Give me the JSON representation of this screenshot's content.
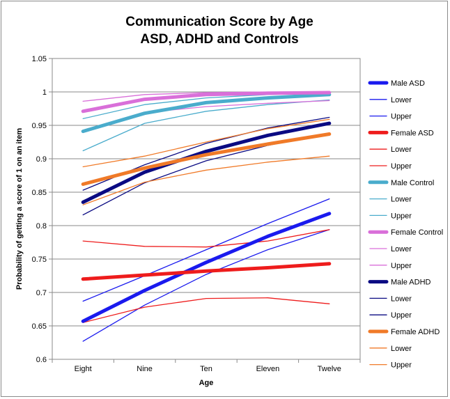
{
  "chart_data": {
    "type": "line",
    "title": [
      "Communication Score by Age",
      "ASD, ADHD and Controls"
    ],
    "xlabel": "Age",
    "ylabel": "Probability of getting a score of 1 on an item",
    "categories": [
      "Eight",
      "Nine",
      "Ten",
      "Eleven",
      "Twelve"
    ],
    "ylim": [
      0.6,
      1.05
    ],
    "yticks": [
      "0.6",
      "0.65",
      "0.7",
      "0.75",
      "0.8",
      "0.85",
      "0.9",
      "0.95",
      "1",
      "1.05"
    ],
    "grid": true,
    "legend_position": "right",
    "series": [
      {
        "name": "Male ASD",
        "color": "#1a1aee",
        "weight": "thick",
        "values": [
          0.657,
          0.703,
          0.745,
          0.784,
          0.818
        ]
      },
      {
        "name": "Lower",
        "color": "#1a1aee",
        "weight": "thin",
        "values": [
          0.627,
          0.681,
          0.727,
          0.764,
          0.794
        ]
      },
      {
        "name": "Upper",
        "color": "#1a1aee",
        "weight": "thin",
        "values": [
          0.687,
          0.725,
          0.764,
          0.803,
          0.84
        ]
      },
      {
        "name": "Female ASD",
        "color": "#ee1c1c",
        "weight": "thick",
        "values": [
          0.72,
          0.726,
          0.732,
          0.737,
          0.743
        ]
      },
      {
        "name": "Lower",
        "color": "#ee1c1c",
        "weight": "thin",
        "values": [
          0.655,
          0.678,
          0.691,
          0.692,
          0.683
        ]
      },
      {
        "name": "Upper",
        "color": "#ee1c1c",
        "weight": "thin",
        "values": [
          0.777,
          0.769,
          0.768,
          0.777,
          0.794
        ]
      },
      {
        "name": "Male Control",
        "color": "#4aaccc",
        "weight": "thick",
        "values": [
          0.941,
          0.968,
          0.984,
          0.991,
          0.996
        ]
      },
      {
        "name": "Lower",
        "color": "#4aaccc",
        "weight": "thin",
        "values": [
          0.912,
          0.953,
          0.971,
          0.981,
          0.988
        ]
      },
      {
        "name": "Upper",
        "color": "#4aaccc",
        "weight": "thin",
        "values": [
          0.96,
          0.981,
          0.991,
          0.996,
          0.999
        ]
      },
      {
        "name": "Female Control",
        "color": "#d96fd9",
        "weight": "thick",
        "values": [
          0.971,
          0.989,
          0.996,
          0.998,
          0.999
        ]
      },
      {
        "name": "Lower",
        "color": "#d96fd9",
        "weight": "thin",
        "values": [
          0.941,
          0.969,
          0.978,
          0.983,
          0.987
        ]
      },
      {
        "name": "Upper",
        "color": "#d96fd9",
        "weight": "thin",
        "values": [
          0.986,
          0.996,
          0.999,
          1.0,
          1.0
        ]
      },
      {
        "name": "Male ADHD",
        "color": "#0a0a82",
        "weight": "thick",
        "values": [
          0.835,
          0.88,
          0.911,
          0.935,
          0.953
        ]
      },
      {
        "name": "Lower",
        "color": "#0a0a82",
        "weight": "thin",
        "values": [
          0.816,
          0.864,
          0.897,
          0.92,
          0.938
        ]
      },
      {
        "name": "Upper",
        "color": "#0a0a82",
        "weight": "thin",
        "values": [
          0.853,
          0.891,
          0.923,
          0.946,
          0.962
        ]
      },
      {
        "name": "Female ADHD",
        "color": "#f07a28",
        "weight": "thick",
        "values": [
          0.862,
          0.886,
          0.906,
          0.922,
          0.937
        ]
      },
      {
        "name": "Lower",
        "color": "#f07a28",
        "weight": "thin",
        "values": [
          0.831,
          0.865,
          0.883,
          0.895,
          0.904
        ]
      },
      {
        "name": "Upper",
        "color": "#f07a28",
        "weight": "thin",
        "values": [
          0.888,
          0.904,
          0.925,
          0.945,
          0.959
        ]
      }
    ]
  }
}
